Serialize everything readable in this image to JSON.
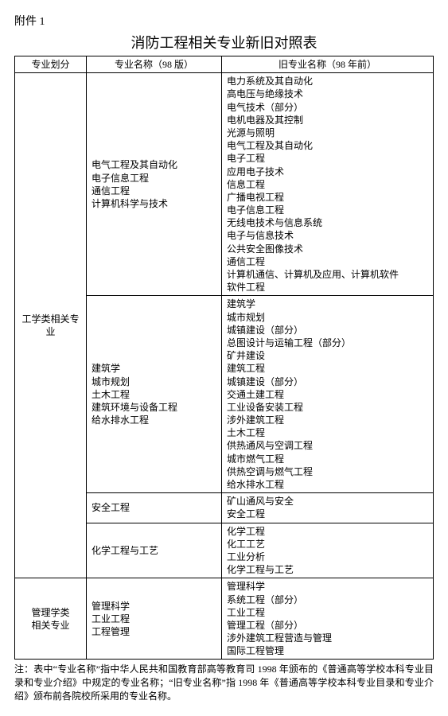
{
  "attachment_label": "附件 1",
  "title": "消防工程相关专业新旧对照表",
  "columns": {
    "c1": "专业划分",
    "c2": "专业名称（98 版）",
    "c3": "旧专业名称（98 年前）"
  },
  "category1": "工学类相关专业",
  "category2": "管理学类\n相关专业",
  "g1_new": [
    "电气工程及其自动化",
    "电子信息工程",
    "通信工程",
    "计算机科学与技术"
  ],
  "g1_old": [
    "电力系统及其自动化",
    "高电压与绝缘技术",
    "电气技术（部分）",
    "电机电器及其控制",
    "光源与照明",
    "电气工程及其自动化",
    "电子工程",
    "应用电子技术",
    "信息工程",
    "广播电视工程",
    "电子信息工程",
    "无线电技术与信息系统",
    "电子与信息技术",
    "公共安全图像技术",
    "通信工程",
    "计算机通信、计算机及应用、计算机软件",
    "软件工程"
  ],
  "g2_new": [
    "建筑学",
    "城市规划",
    "土木工程",
    "建筑环境与设备工程",
    "给水排水工程"
  ],
  "g2_old": [
    "建筑学",
    "城市规划",
    "城镇建设（部分）",
    "总图设计与运输工程（部分）",
    "矿井建设",
    "建筑工程",
    "城镇建设（部分）",
    "交通土建工程",
    "工业设备安装工程",
    "涉外建筑工程",
    "土木工程",
    "供热通风与空调工程",
    "城市燃气工程",
    "供热空调与燃气工程",
    "给水排水工程"
  ],
  "g3_new": [
    "安全工程"
  ],
  "g3_old": [
    "矿山通风与安全",
    "安全工程"
  ],
  "g4_new": [
    "化学工程与工艺"
  ],
  "g4_old": [
    "化学工程",
    "化工工艺",
    "工业分析",
    "化学工程与工艺"
  ],
  "g5_new": [
    "管理科学",
    "工业工程",
    "工程管理"
  ],
  "g5_old": [
    "管理科学",
    "系统工程（部分）",
    "工业工程",
    "管理工程（部分）",
    "涉外建筑工程营造与管理",
    "国际工程管理"
  ],
  "footnote": "注：表中“专业名称”指中华人民共和国教育部高等教育司 1998 年颁布的《普通高等学校本科专业目录和专业介绍》中规定的专业名称；“旧专业名称”指 1998 年《普通高等学校本科专业目录和专业介绍》颁布前各院校所采用的专业名称。"
}
